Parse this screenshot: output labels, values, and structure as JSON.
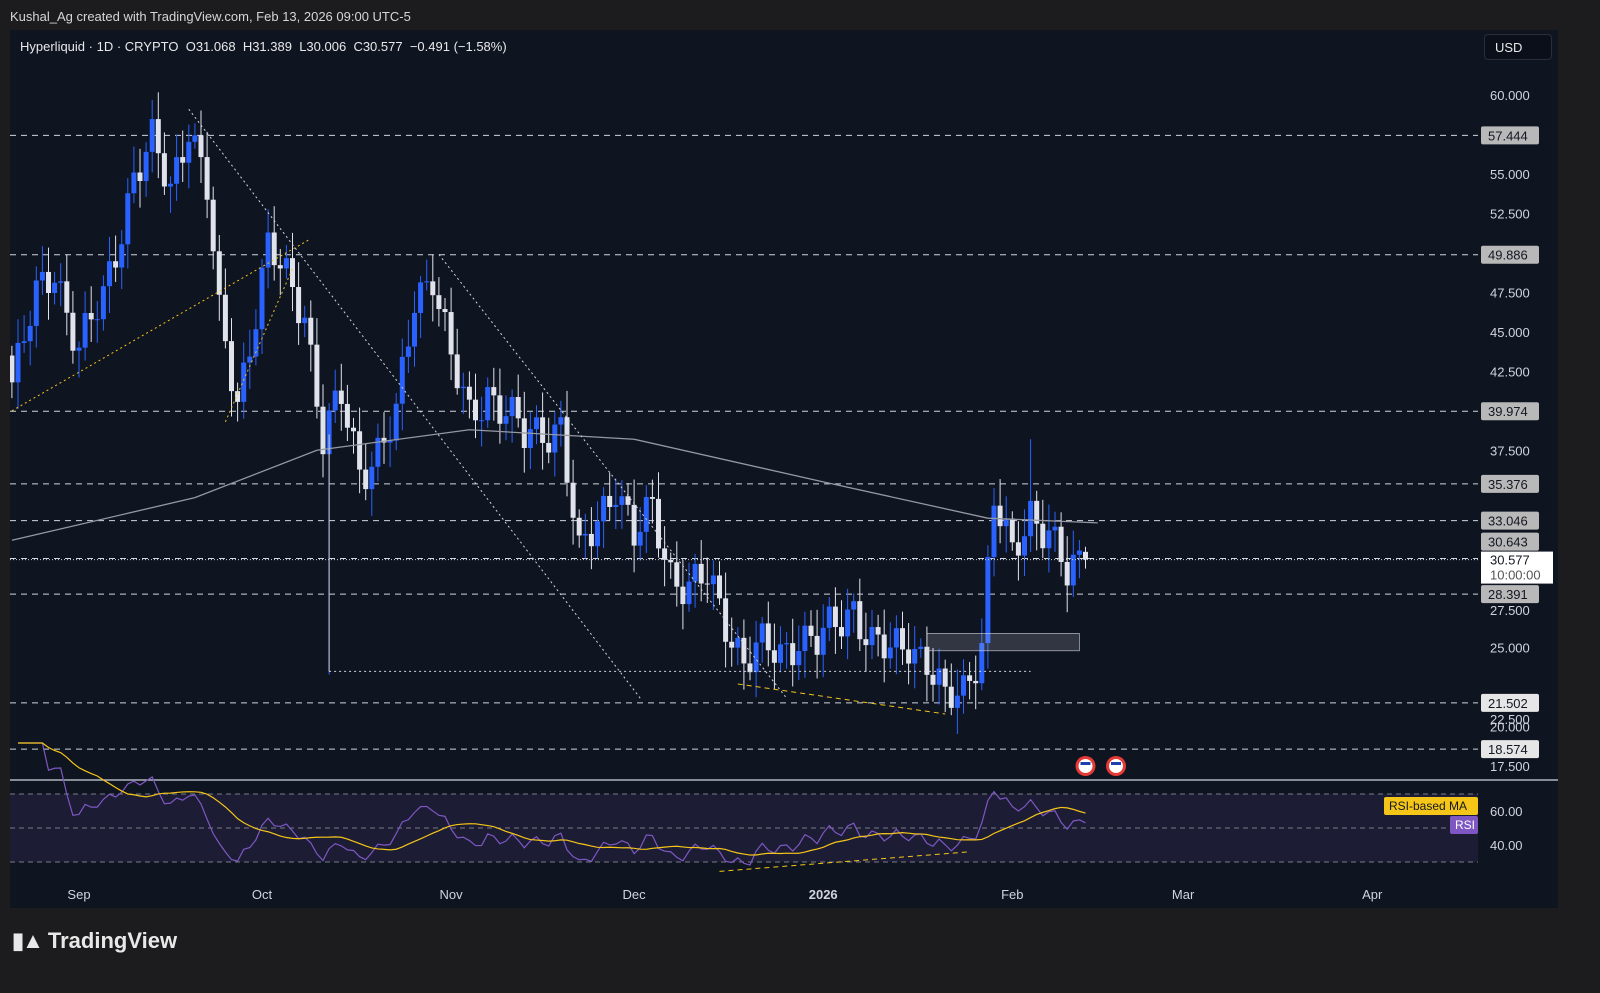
{
  "credit": "Kushal_Ag created with TradingView.com, Feb 13, 2026 09:00 UTC-5",
  "legend": {
    "symbol": "Hyperliquid · 1D · CRYPTO",
    "open": "O31.068",
    "high": "H31.389",
    "low": "L30.006",
    "close": "C30.577",
    "change": "−0.491 (−1.58%)"
  },
  "currency_button": "USD",
  "brand": "TradingView",
  "colors": {
    "up": "#2962ff",
    "down": "#e0e3eb",
    "ma": "#9598a1",
    "rsi": "#7e57c2",
    "rsi_ma": "#f5c518",
    "background": "#0f1421"
  },
  "chart_data": {
    "type": "candlestick",
    "timeframe": "1D",
    "ylim": [
      16.5,
      62
    ],
    "y_ticks": [
      "60.000",
      "55.000",
      "52.500",
      "47.500",
      "45.000",
      "42.500",
      "37.500",
      "27.500",
      "25.000",
      "22.500",
      "20.000",
      "17.500"
    ],
    "x_ticks": [
      {
        "label": "Sep",
        "date": "2025-09-01"
      },
      {
        "label": "Oct",
        "date": "2025-10-01"
      },
      {
        "label": "Nov",
        "date": "2025-11-01"
      },
      {
        "label": "Dec",
        "date": "2025-12-01"
      },
      {
        "label": "2026",
        "date": "2026-01-01",
        "bold": true
      },
      {
        "label": "Feb",
        "date": "2026-02-01"
      },
      {
        "label": "Mar",
        "date": "2026-03-01"
      },
      {
        "label": "Apr",
        "date": "2026-04-01"
      }
    ],
    "last_candle": {
      "date": "2026-02-13",
      "open": 31.068,
      "high": 31.389,
      "low": 30.006,
      "close": 30.577
    },
    "current_price": {
      "value": "30.577",
      "countdown": "10:00:00"
    },
    "levels": [
      "57.444",
      "49.886",
      "39.974",
      "35.376",
      "33.046",
      "30.643",
      "28.391",
      "21.502",
      "18.574"
    ],
    "close_anchors": [
      [
        "2025-08-21",
        42
      ],
      [
        "2025-08-25",
        47
      ],
      [
        "2025-08-28",
        49
      ],
      [
        "2025-09-01",
        44
      ],
      [
        "2025-09-05",
        47
      ],
      [
        "2025-09-10",
        55
      ],
      [
        "2025-09-13",
        56.8
      ],
      [
        "2025-09-16",
        54
      ],
      [
        "2025-09-19",
        58.4
      ],
      [
        "2025-09-22",
        54
      ],
      [
        "2025-09-24",
        45.7
      ],
      [
        "2025-09-27",
        40.7
      ],
      [
        "2025-09-30",
        46.4
      ],
      [
        "2025-10-02",
        50.2
      ],
      [
        "2025-10-05",
        48.3
      ],
      [
        "2025-10-08",
        46.4
      ],
      [
        "2025-10-11",
        38.2
      ],
      [
        "2025-10-14",
        40.7
      ],
      [
        "2025-10-17",
        36.3
      ],
      [
        "2025-10-20",
        37.5
      ],
      [
        "2025-10-23",
        39.4
      ],
      [
        "2025-10-26",
        47
      ],
      [
        "2025-10-29",
        48.9
      ],
      [
        "2025-11-01",
        43.2
      ],
      [
        "2025-11-04",
        39.4
      ],
      [
        "2025-11-07",
        41.3
      ],
      [
        "2025-11-10",
        40
      ],
      [
        "2025-11-13",
        38.2
      ],
      [
        "2025-11-16",
        38.8
      ],
      [
        "2025-11-19",
        39.1
      ],
      [
        "2025-11-22",
        30.5
      ],
      [
        "2025-11-25",
        33.1
      ],
      [
        "2025-11-28",
        35.6
      ],
      [
        "2025-12-01",
        31.8
      ],
      [
        "2025-12-04",
        33.7
      ],
      [
        "2025-12-07",
        29.9
      ],
      [
        "2025-12-10",
        28.7
      ],
      [
        "2025-12-13",
        29.3
      ],
      [
        "2025-12-16",
        26.8
      ],
      [
        "2025-12-19",
        24.2
      ],
      [
        "2025-12-22",
        24.9
      ],
      [
        "2025-12-25",
        24.6
      ],
      [
        "2025-12-28",
        25.8
      ],
      [
        "2025-12-31",
        25.2
      ],
      [
        "2026-01-03",
        26.4
      ],
      [
        "2026-01-06",
        27.7
      ],
      [
        "2026-01-09",
        25.2
      ],
      [
        "2026-01-12",
        24.6
      ],
      [
        "2026-01-15",
        25.5
      ],
      [
        "2026-01-18",
        24.2
      ],
      [
        "2026-01-21",
        21.4
      ],
      [
        "2026-01-24",
        22.3
      ],
      [
        "2026-01-27",
        25.5
      ],
      [
        "2026-01-29",
        34.4
      ],
      [
        "2026-02-01",
        30.5
      ],
      [
        "2026-02-04",
        33.7
      ],
      [
        "2026-02-07",
        32.5
      ],
      [
        "2026-02-10",
        29.3
      ],
      [
        "2026-02-13",
        30.577
      ]
    ],
    "moving_average": [
      [
        "2025-08-21",
        31.8
      ],
      [
        "2025-09-20",
        34.5
      ],
      [
        "2025-10-10",
        37.5
      ],
      [
        "2025-11-04",
        38.8
      ],
      [
        "2025-12-01",
        38.2
      ],
      [
        "2026-01-01",
        35.5
      ],
      [
        "2026-01-28",
        33.2
      ],
      [
        "2026-02-15",
        32.9
      ]
    ],
    "rsi": {
      "labels": [
        "RSI-based MA",
        "RSI"
      ],
      "y_ticks": [
        "60.00",
        "40.00"
      ],
      "bands": [
        70,
        50,
        30
      ],
      "ylim": [
        20,
        80
      ]
    },
    "events": [
      "us-economic-event",
      "us-economic-event"
    ]
  }
}
